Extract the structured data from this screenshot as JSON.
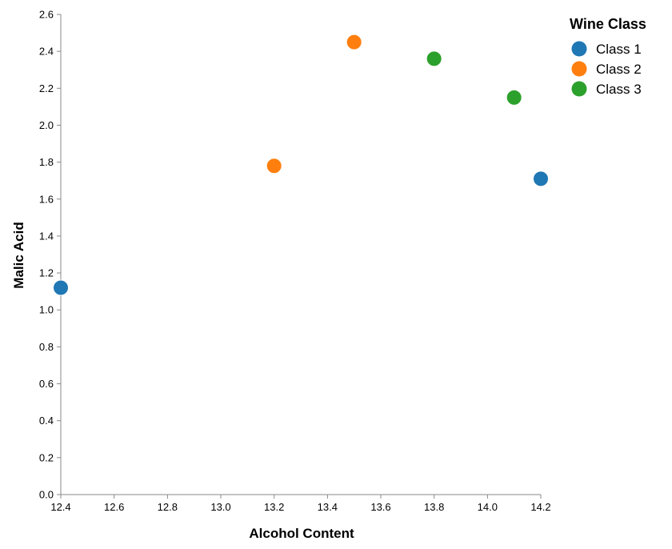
{
  "chart_data": {
    "type": "scatter",
    "xlabel": "Alcohol Content",
    "ylabel": "Malic Acid",
    "xlim": [
      12.4,
      14.2
    ],
    "ylim": [
      0.0,
      2.6
    ],
    "x_ticks": [
      "12.4",
      "12.6",
      "12.8",
      "13.0",
      "13.2",
      "13.4",
      "13.6",
      "13.8",
      "14.0",
      "14.2"
    ],
    "y_ticks": [
      "0.0",
      "0.2",
      "0.4",
      "0.6",
      "0.8",
      "1.0",
      "1.2",
      "1.4",
      "1.6",
      "1.8",
      "2.0",
      "2.2",
      "2.4",
      "2.6"
    ],
    "grid": false,
    "legend": {
      "title": "Wine Class",
      "placement": "top-right",
      "entries": [
        {
          "label": "Class 1",
          "color": "#1f77b4"
        },
        {
          "label": "Class 2",
          "color": "#ff7f0e"
        },
        {
          "label": "Class 3",
          "color": "#2ca02c"
        }
      ]
    },
    "series": [
      {
        "name": "Class 1",
        "color": "#1f77b4",
        "points": [
          {
            "x": 12.4,
            "y": 1.12
          },
          {
            "x": 14.2,
            "y": 1.71
          }
        ]
      },
      {
        "name": "Class 2",
        "color": "#ff7f0e",
        "points": [
          {
            "x": 13.2,
            "y": 1.78
          },
          {
            "x": 13.5,
            "y": 2.45
          }
        ]
      },
      {
        "name": "Class 3",
        "color": "#2ca02c",
        "points": [
          {
            "x": 13.8,
            "y": 2.36
          },
          {
            "x": 14.1,
            "y": 2.15
          }
        ]
      }
    ]
  }
}
